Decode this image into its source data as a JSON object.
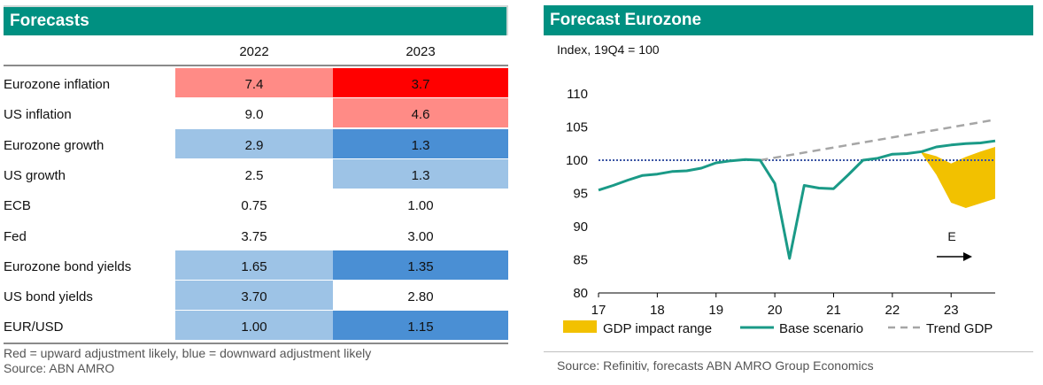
{
  "forecasts": {
    "title": "Forecasts",
    "columns": [
      "2022",
      "2023"
    ],
    "colors": {
      "light_red": "#ff8b86",
      "red": "#ff0000",
      "light_blue": "#9dc3e6",
      "blue": "#4a8fd4"
    },
    "rows": [
      {
        "label": "Eurozone inflation",
        "v2022": "7.4",
        "v2023": "3.7",
        "c2022": "light_red",
        "c2023": "red"
      },
      {
        "label": "US inflation",
        "v2022": "9.0",
        "v2023": "4.6",
        "c2022": "none",
        "c2023": "light_red"
      },
      {
        "label": "Eurozone growth",
        "v2022": "2.9",
        "v2023": "1.3",
        "c2022": "light_blue",
        "c2023": "blue"
      },
      {
        "label": "US growth",
        "v2022": "2.5",
        "v2023": "1.3",
        "c2022": "none",
        "c2023": "light_blue"
      },
      {
        "label": "ECB",
        "v2022": "0.75",
        "v2023": "1.00",
        "c2022": "none",
        "c2023": "none"
      },
      {
        "label": "Fed",
        "v2022": "3.75",
        "v2023": "3.00",
        "c2022": "none",
        "c2023": "none"
      },
      {
        "label": "Eurozone bond yields",
        "v2022": "1.65",
        "v2023": "1.35",
        "c2022": "light_blue",
        "c2023": "blue"
      },
      {
        "label": "US bond yields",
        "v2022": "3.70",
        "v2023": "2.80",
        "c2022": "light_blue",
        "c2023": "none"
      },
      {
        "label": "EUR/USD",
        "v2022": "1.00",
        "v2023": "1.15",
        "c2022": "light_blue",
        "c2023": "blue"
      }
    ],
    "note": "Red = upward adjustment likely, blue = downward adjustment likely",
    "source": "Source: ABN AMRO"
  },
  "eurozone_chart": {
    "title": "Forecast Eurozone",
    "subtitle": "Index, 19Q4 = 100",
    "source": "Source: Refinitiv, forecasts ABN AMRO Group Economics",
    "forecast_marker": "E",
    "colors": {
      "header": "#009081",
      "base": "#1a9a87",
      "range": "#f2c100",
      "trend": "#a6a6a6",
      "baseline": "#3b55a4"
    }
  },
  "chart_data": {
    "type": "line",
    "title": "Forecast Eurozone",
    "subtitle": "Index, 19Q4 = 100",
    "x_ticks": [
      "17",
      "18",
      "19",
      "20",
      "21",
      "22",
      "23"
    ],
    "ylim": [
      80,
      110
    ],
    "yticks": [
      80,
      85,
      90,
      95,
      100,
      105,
      110
    ],
    "reference_line": 100,
    "series": [
      {
        "name": "Base scenario",
        "style": "solid",
        "x": [
          "17Q1",
          "17Q2",
          "17Q3",
          "17Q4",
          "18Q1",
          "18Q2",
          "18Q3",
          "18Q4",
          "19Q1",
          "19Q2",
          "19Q3",
          "19Q4",
          "20Q1",
          "20Q2",
          "20Q3",
          "20Q4",
          "21Q1",
          "21Q2",
          "21Q3",
          "21Q4",
          "22Q1",
          "22Q2",
          "22Q3",
          "22Q4",
          "23Q1",
          "23Q2",
          "23Q3",
          "23Q4"
        ],
        "y": [
          95.5,
          96.2,
          97.0,
          97.7,
          97.9,
          98.3,
          98.4,
          98.8,
          99.6,
          99.9,
          100.1,
          100.0,
          96.5,
          85.2,
          96.2,
          95.8,
          95.7,
          97.8,
          100.0,
          100.3,
          100.9,
          101.0,
          101.3,
          102.0,
          102.3,
          102.5,
          102.6,
          102.9
        ]
      },
      {
        "name": "Trend GDP",
        "style": "dashed",
        "x": [
          "19Q4",
          "23Q4"
        ],
        "y": [
          100.0,
          106.1
        ]
      },
      {
        "name": "GDP impact range",
        "style": "area",
        "x": [
          "22Q3",
          "22Q4",
          "23Q1",
          "23Q2",
          "23Q3",
          "23Q4"
        ],
        "upper": [
          101.2,
          100.6,
          99.5,
          100.5,
          101.3,
          102.0
        ],
        "lower": [
          101.0,
          97.8,
          93.6,
          92.8,
          93.5,
          94.2
        ]
      }
    ],
    "legend": [
      "GDP impact range",
      "Base scenario",
      "Trend GDP"
    ],
    "legend_position": "bottom"
  }
}
